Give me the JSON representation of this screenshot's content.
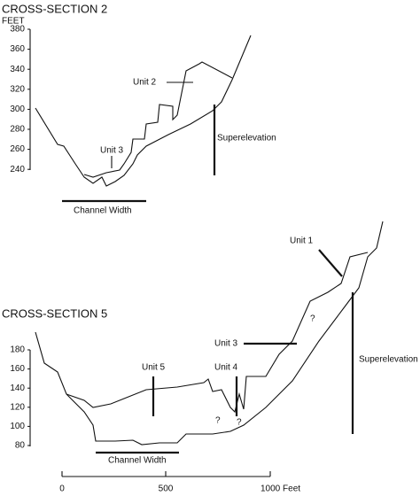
{
  "sections": [
    {
      "title": "CROSS-SECTION 2",
      "axis_label": "FEET",
      "yticks": [
        "380",
        "360",
        "340",
        "320",
        "300",
        "280",
        "260",
        "240"
      ],
      "units": [
        "Unit 2",
        "Unit 3"
      ],
      "superelevation": "Superelevation",
      "channel_width": "Channel Width"
    },
    {
      "title": "CROSS-SECTION 5",
      "yticks": [
        "180",
        "160",
        "140",
        "120",
        "100",
        "80"
      ],
      "units": [
        "Unit 1",
        "Unit 3",
        "Unit 5",
        "Unit 4"
      ],
      "uncertain": [
        "?",
        "?",
        "?"
      ],
      "superelevation": "Superelevation",
      "channel_width": "Channel Width"
    }
  ],
  "scale_bar": {
    "labels": [
      "0",
      "500",
      "1000 Feet"
    ]
  }
}
